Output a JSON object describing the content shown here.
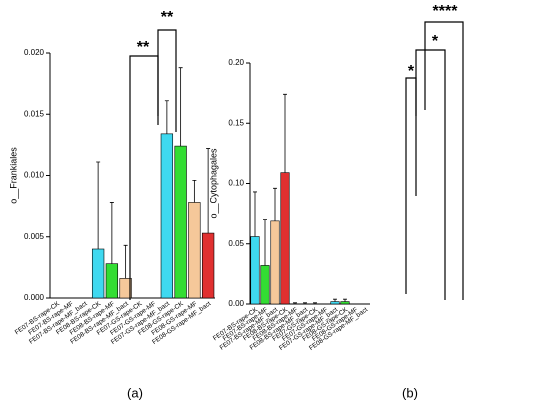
{
  "charts": [
    {
      "type": "bar",
      "panel": "(a)",
      "ylabel": "o__Frankiales",
      "annotations": [
        "**",
        "**"
      ],
      "categories": [
        "FE07-BS-rape-CK",
        "FE07-BS-rape-MF",
        "FE07-BS-rape-MF_bact",
        "FE08-BS-rape-CK",
        "FE08-BS-rape-MF",
        "FE08-BS-rape-MF_bact",
        "FE07-GS-rape-CK",
        "FE07-GS-rape-MF",
        "FE07-GS-rape-MF_bact",
        "FE08-GS-rape-CK",
        "FE08-GS-rape-MF",
        "FE08-GS-rape-MF_bact"
      ],
      "values": [
        0,
        0,
        0,
        0.004,
        0.0028,
        0.0016,
        0,
        0,
        0.0134,
        0.0124,
        0.0078,
        0.0053
      ],
      "errors": [
        0,
        0,
        0,
        0.0071,
        0.005,
        0.0027,
        0,
        0,
        0.0027,
        0.0064,
        0.0018,
        0.0069
      ],
      "colors": [
        "#3fd9f0",
        "#33dd33",
        "#f5c89a",
        "#3fd9f0",
        "#33dd33",
        "#f5c89a",
        "#e03030",
        "#3fd9f0",
        "#3fd9f0",
        "#33dd33",
        "#f5c89a",
        "#e03030"
      ],
      "ylim": [
        0,
        0.02
      ],
      "yticks": [
        {
          "value": 0,
          "label": "0.000"
        },
        {
          "value": 0.005,
          "label": "0.005"
        },
        {
          "value": 0.01,
          "label": "0.010"
        },
        {
          "value": 0.015,
          "label": "0.015"
        },
        {
          "value": 0.02,
          "label": "0.020"
        }
      ]
    },
    {
      "type": "bar",
      "panel": "(b)",
      "ylabel": "o__Cytophagales",
      "annotations": [
        "*",
        "*",
        "****"
      ],
      "categories": [
        "FE07-BS-rape-CK",
        "FE07-BS-rape-MF",
        "FE07-BS-rape-MF_bact",
        "FE08-BS-rape-CK",
        "FE08-BS-rape-MF",
        "FE08-BS-rape-MF_bact",
        "FE07-GS-rape-CK",
        "FE07-GS-rape-MF",
        "FE07-GS-rape-MF_bact",
        "FE08-GS-rape-CK",
        "FE08-GS-rape-MF",
        "FE08-GS-rape-MF_bact"
      ],
      "values": [
        0.056,
        0.032,
        0.069,
        0.109,
        0,
        0,
        0,
        0,
        0.002,
        0.002,
        0,
        0
      ],
      "errors": [
        0.037,
        0.038,
        0.027,
        0.065,
        0.001,
        0.001,
        0.001,
        0,
        0.002,
        0.002,
        0,
        0
      ],
      "colors": [
        "#3fd9f0",
        "#33dd33",
        "#f5c89a",
        "#e03030",
        "#3fd9f0",
        "#33dd33",
        "#f5c89a",
        "#e03030",
        "#3fd9f0",
        "#33dd33",
        "#f5c89a",
        "#e03030"
      ],
      "ylim": [
        0,
        0.2
      ],
      "yticks": [
        {
          "value": 0,
          "label": "0.00"
        },
        {
          "value": 0.05,
          "label": "0.05"
        },
        {
          "value": 0.1,
          "label": "0.10"
        },
        {
          "value": 0.15,
          "label": "0.15"
        },
        {
          "value": 0.2,
          "label": "0.20"
        }
      ]
    }
  ]
}
